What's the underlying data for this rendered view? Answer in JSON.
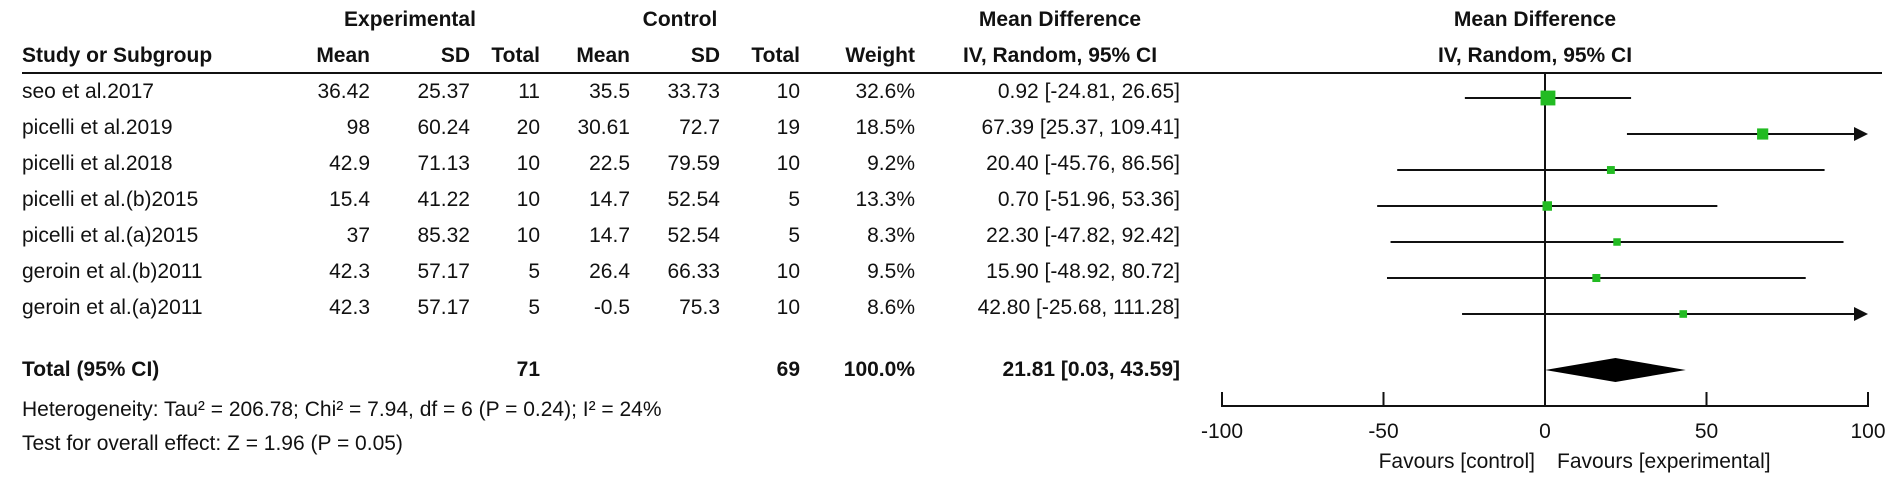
{
  "table": {
    "group_headers": {
      "experimental": "Experimental",
      "control": "Control",
      "md_text": "Mean Difference",
      "md_plot": "Mean Difference"
    },
    "columns": {
      "study": "Study or Subgroup",
      "mean_e": "Mean",
      "sd_e": "SD",
      "total_e": "Total",
      "mean_c": "Mean",
      "sd_c": "SD",
      "total_c": "Total",
      "weight": "Weight",
      "ci": "IV, Random, 95% CI",
      "plot_ci": "IV, Random, 95% CI"
    },
    "rows": [
      {
        "study": "seo et al.2017",
        "mean_e": "36.42",
        "sd_e": "25.37",
        "total_e": "11",
        "mean_c": "35.5",
        "sd_c": "33.73",
        "total_c": "10",
        "weight": "32.6%",
        "ci": "0.92 [-24.81, 26.65]"
      },
      {
        "study": "picelli et al.2019",
        "mean_e": "98",
        "sd_e": "60.24",
        "total_e": "20",
        "mean_c": "30.61",
        "sd_c": "72.7",
        "total_c": "19",
        "weight": "18.5%",
        "ci": "67.39 [25.37, 109.41]"
      },
      {
        "study": "picelli et al.2018",
        "mean_e": "42.9",
        "sd_e": "71.13",
        "total_e": "10",
        "mean_c": "22.5",
        "sd_c": "79.59",
        "total_c": "10",
        "weight": "9.2%",
        "ci": "20.40 [-45.76, 86.56]"
      },
      {
        "study": "picelli et al.(b)2015",
        "mean_e": "15.4",
        "sd_e": "41.22",
        "total_e": "10",
        "mean_c": "14.7",
        "sd_c": "52.54",
        "total_c": "5",
        "weight": "13.3%",
        "ci": "0.70 [-51.96, 53.36]"
      },
      {
        "study": "picelli et al.(a)2015",
        "mean_e": "37",
        "sd_e": "85.32",
        "total_e": "10",
        "mean_c": "14.7",
        "sd_c": "52.54",
        "total_c": "5",
        "weight": "8.3%",
        "ci": "22.30 [-47.82, 92.42]"
      },
      {
        "study": "geroin et al.(b)2011",
        "mean_e": "42.3",
        "sd_e": "57.17",
        "total_e": "5",
        "mean_c": "26.4",
        "sd_c": "66.33",
        "total_c": "10",
        "weight": "9.5%",
        "ci": "15.90 [-48.92, 80.72]"
      },
      {
        "study": "geroin et al.(a)2011",
        "mean_e": "42.3",
        "sd_e": "57.17",
        "total_e": "5",
        "mean_c": "-0.5",
        "sd_c": "75.3",
        "total_c": "10",
        "weight": "8.6%",
        "ci": "42.80 [-25.68, 111.28]"
      }
    ],
    "total": {
      "label": "Total (95% CI)",
      "total_e": "71",
      "total_c": "69",
      "weight": "100.0%",
      "ci": "21.81 [0.03, 43.59]"
    },
    "heterogeneity": "Heterogeneity: Tau² = 206.78; Chi² = 7.94, df = 6 (P = 0.24); I² = 24%",
    "overall_effect": "Test for overall effect: Z = 1.96 (P = 0.05)"
  },
  "chart_data": {
    "type": "forest",
    "xlim": [
      -100,
      100
    ],
    "ticks": [
      -100,
      -50,
      0,
      50,
      100
    ],
    "favours_left": "Favours [control]",
    "favours_right": "Favours [experimental]",
    "marker_color": "#22bb22",
    "studies": [
      {
        "name": "seo et al.2017",
        "est": 0.92,
        "lo": -24.81,
        "hi": 26.65,
        "weight": 32.6
      },
      {
        "name": "picelli et al.2019",
        "est": 67.39,
        "lo": 25.37,
        "hi": 109.41,
        "weight": 18.5
      },
      {
        "name": "picelli et al.2018",
        "est": 20.4,
        "lo": -45.76,
        "hi": 86.56,
        "weight": 9.2
      },
      {
        "name": "picelli et al.(b)2015",
        "est": 0.7,
        "lo": -51.96,
        "hi": 53.36,
        "weight": 13.3
      },
      {
        "name": "picelli et al.(a)2015",
        "est": 22.3,
        "lo": -47.82,
        "hi": 92.42,
        "weight": 8.3
      },
      {
        "name": "geroin et al.(b)2011",
        "est": 15.9,
        "lo": -48.92,
        "hi": 80.72,
        "weight": 9.5
      },
      {
        "name": "geroin et al.(a)2011",
        "est": 42.8,
        "lo": -25.68,
        "hi": 111.28,
        "weight": 8.6
      }
    ],
    "pooled": {
      "est": 21.81,
      "lo": 0.03,
      "hi": 43.59
    }
  }
}
